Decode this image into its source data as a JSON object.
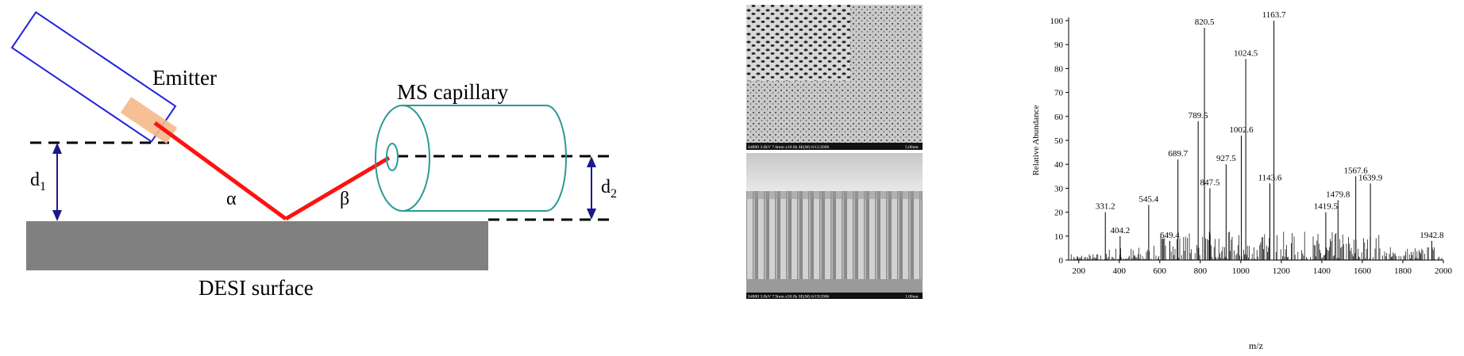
{
  "diagram": {
    "emitter_label": "Emitter",
    "capillary_label": "MS capillary",
    "surface_label": "DESI surface",
    "d1_label": "d",
    "d1_sub": "1",
    "d2_label": "d",
    "d2_sub": "2",
    "alpha_label": "α",
    "beta_label": "β",
    "colors": {
      "emitter_outline": "#2222dd",
      "spray": "#f5b889",
      "beam": "#ff1111",
      "capillary": "#2a9a96",
      "surface": "#808080",
      "arrow": "#1a1a8a"
    }
  },
  "sem": {
    "top_caption": "S4800 3.0kV 7.6mm x10.0k SE(M) 6/15/2006",
    "top_scale": "5.00um",
    "bottom_caption": "S4800 3.0kV 7.9mm x50.0k SE(M) 6/19/2006",
    "bottom_scale": "1.00um"
  },
  "chart_data": {
    "type": "line",
    "xlabel": "m/z",
    "ylabel": "Relative Abundance",
    "xlim": [
      150,
      2000
    ],
    "ylim": [
      0,
      100
    ],
    "xticks": [
      200,
      400,
      600,
      800,
      1000,
      1200,
      1400,
      1600,
      1800,
      2000
    ],
    "yticks": [
      0,
      10,
      20,
      30,
      40,
      50,
      60,
      70,
      80,
      90,
      100
    ],
    "peaks": [
      {
        "mz": 331.2,
        "abundance": 20
      },
      {
        "mz": 404.2,
        "abundance": 10
      },
      {
        "mz": 545.4,
        "abundance": 23
      },
      {
        "mz": 649.4,
        "abundance": 8
      },
      {
        "mz": 689.7,
        "abundance": 42
      },
      {
        "mz": 789.5,
        "abundance": 58
      },
      {
        "mz": 820.5,
        "abundance": 97
      },
      {
        "mz": 847.5,
        "abundance": 30
      },
      {
        "mz": 927.5,
        "abundance": 40
      },
      {
        "mz": 1002.6,
        "abundance": 52
      },
      {
        "mz": 1024.5,
        "abundance": 84
      },
      {
        "mz": 1143.6,
        "abundance": 32
      },
      {
        "mz": 1163.7,
        "abundance": 100
      },
      {
        "mz": 1419.5,
        "abundance": 20
      },
      {
        "mz": 1479.8,
        "abundance": 25
      },
      {
        "mz": 1567.6,
        "abundance": 35
      },
      {
        "mz": 1639.9,
        "abundance": 32
      },
      {
        "mz": 1942.8,
        "abundance": 8
      }
    ],
    "peak_labels": [
      "331.2",
      "404.2",
      "545.4",
      "649.4",
      "689.7",
      "789.5",
      "820.5",
      "847.5",
      "927.5",
      "1002.6",
      "1024.5",
      "1143.6",
      "1163.7",
      "1419.5",
      "1479.8",
      "1567.6",
      "1639.9",
      "1942.8"
    ]
  }
}
